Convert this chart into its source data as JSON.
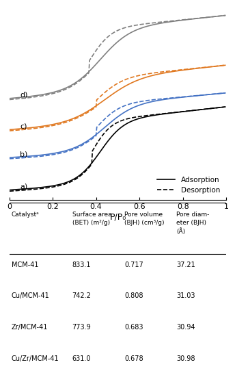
{
  "title": "",
  "xlabel": "P/P₀",
  "ylabel": "",
  "xlim": [
    0,
    1
  ],
  "legend_labels": [
    "Adsorption",
    "Desorption"
  ],
  "curve_labels": [
    "a)",
    "b)",
    "c)",
    "d)"
  ],
  "colors": {
    "a": "#000000",
    "b": "#4472c4",
    "c": "#e07820",
    "d": "#808080"
  },
  "table_headers": [
    "Catalystᵃ",
    "Surface area\n(BET) (m²/g)",
    "Pore volume\n(BJH) (cm³/g)",
    "Pore diam-\neter (BJH)\n(Å)"
  ],
  "table_data": [
    [
      "MCM-41",
      "833.1",
      "0.717",
      "37.21"
    ],
    [
      "Cu/MCM-41",
      "742.2",
      "0.808",
      "31.03"
    ],
    [
      "Zr/MCM-41",
      "773.9",
      "0.683",
      "30.94"
    ],
    [
      "Cu/Zr/MCM-41",
      "631.0",
      "0.678",
      "30.98"
    ]
  ],
  "background": "#ffffff"
}
